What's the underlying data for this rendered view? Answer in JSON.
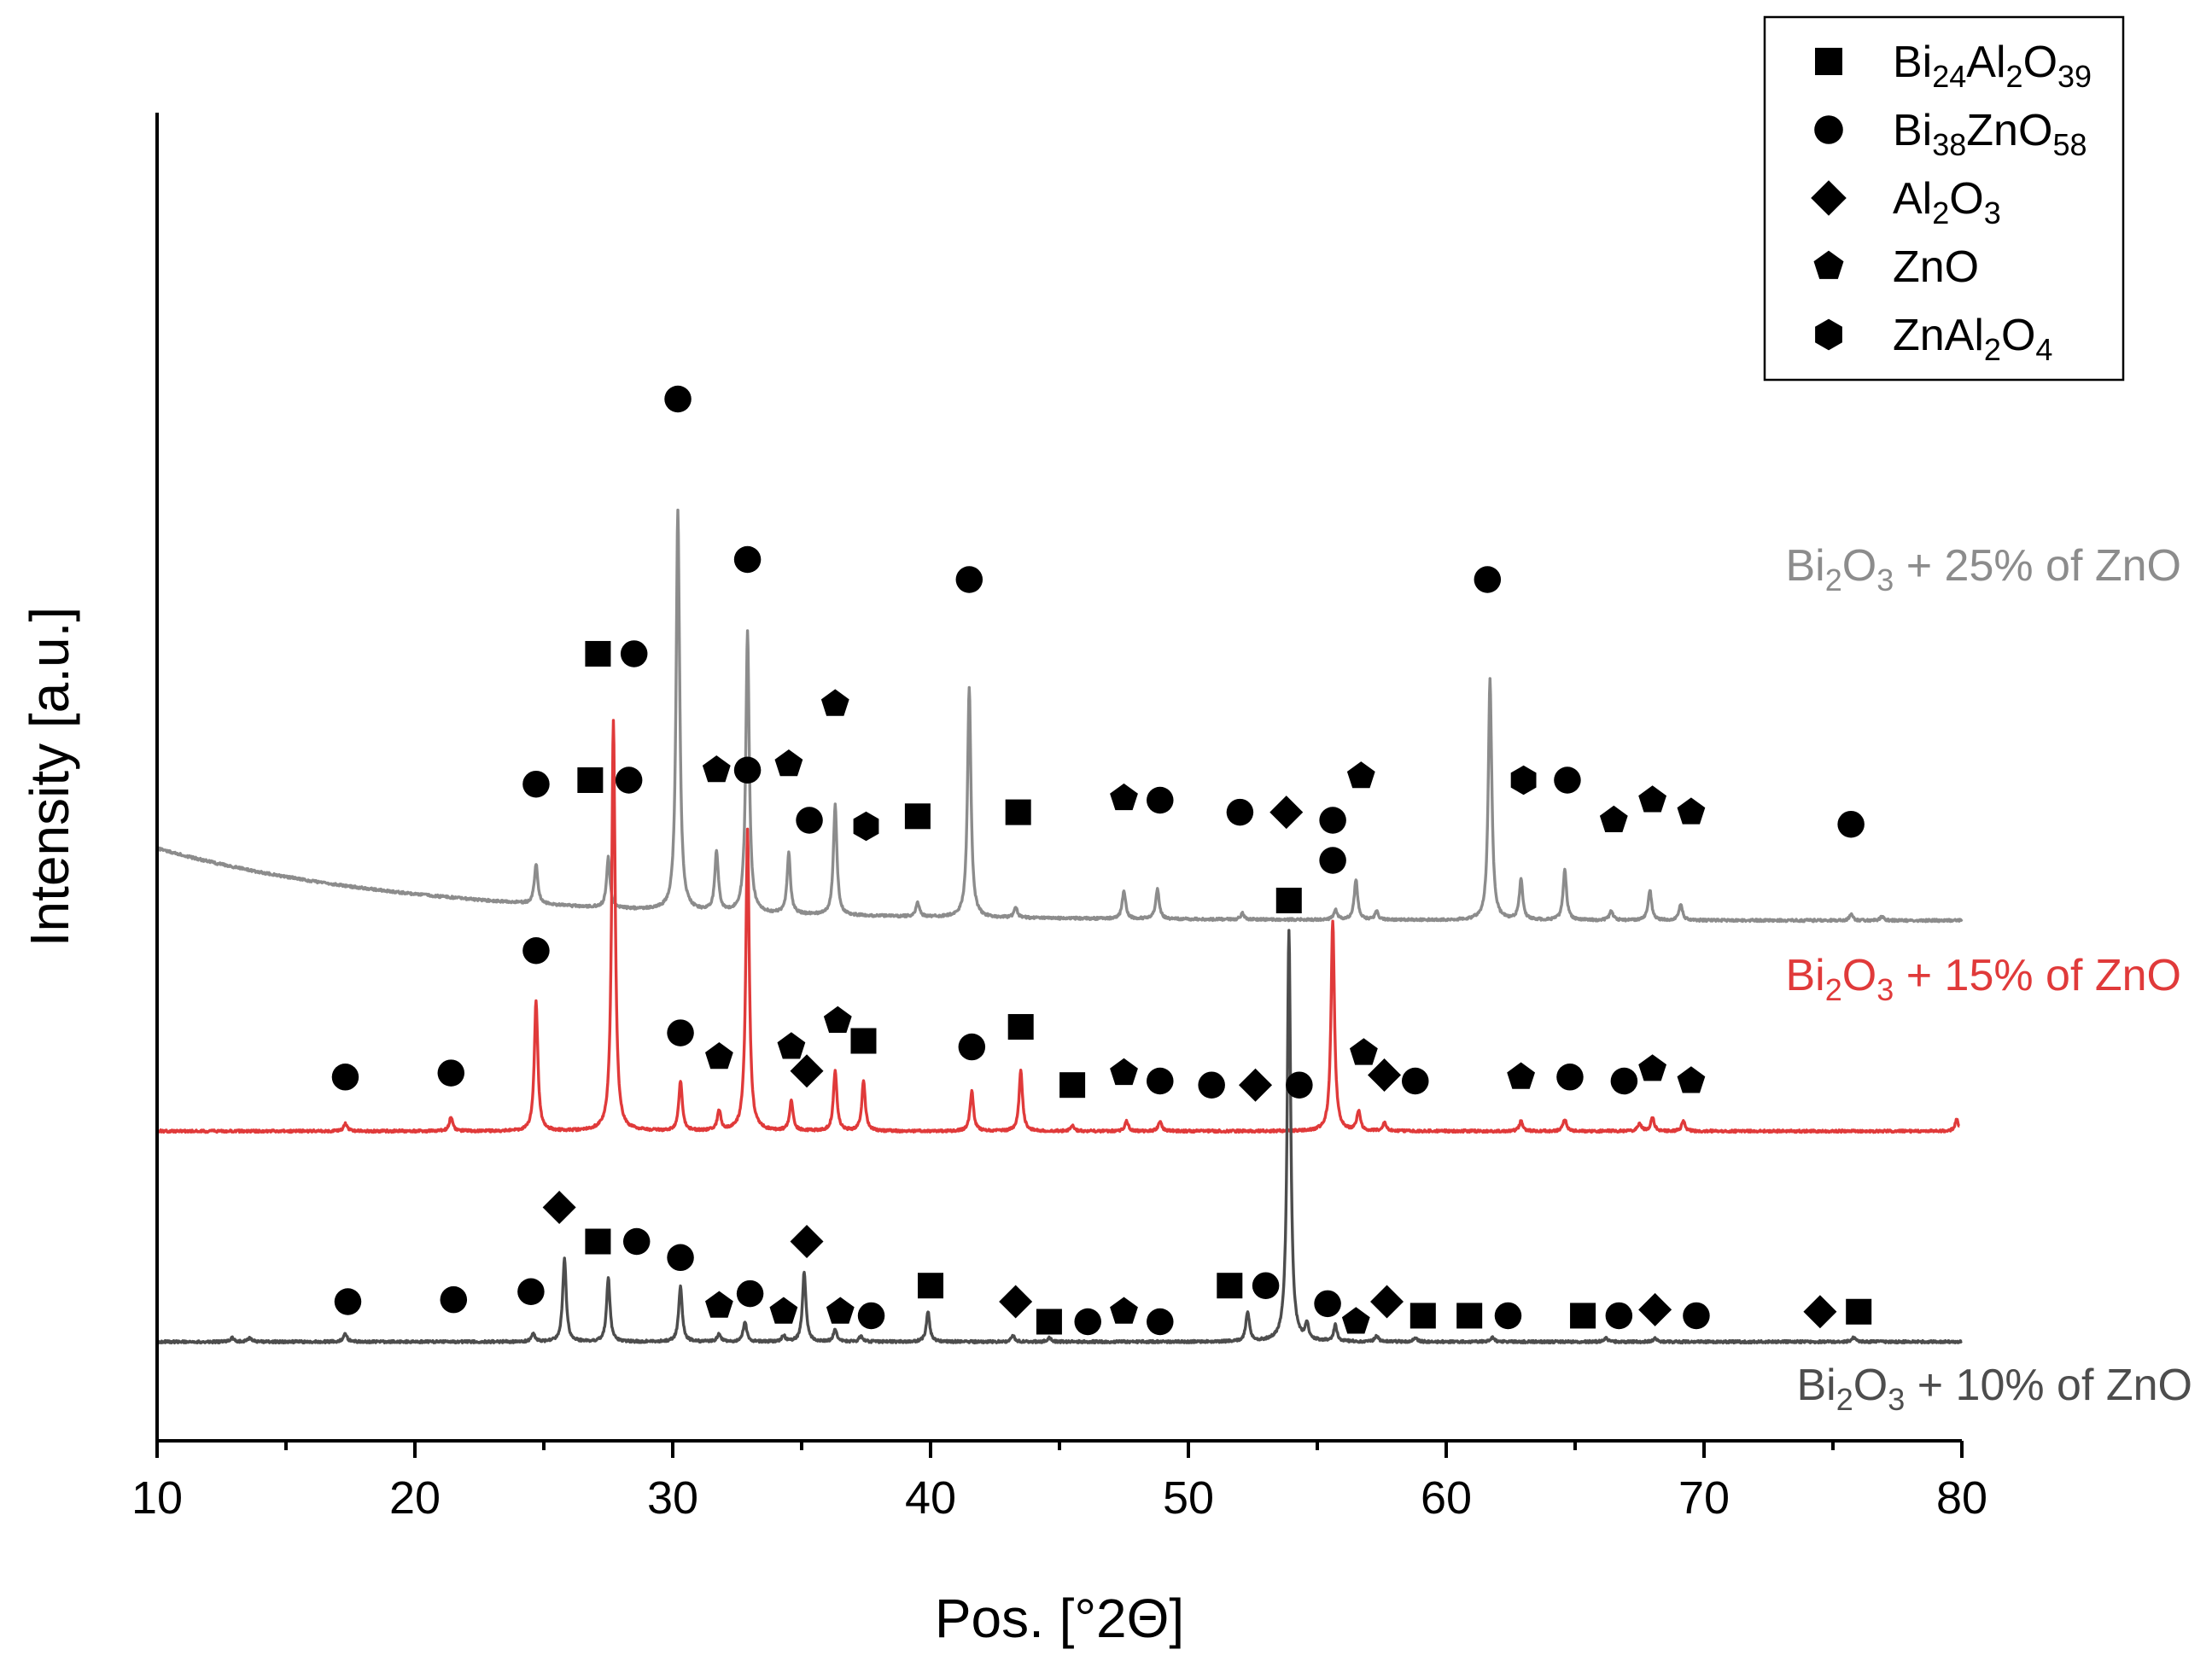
{
  "chart_data": {
    "type": "line",
    "title": "",
    "xlabel": "Pos. [°2Θ]",
    "ylabel": "Intensity [a.u.]",
    "xlim": [
      10,
      80
    ],
    "xticks": [
      10,
      20,
      30,
      40,
      50,
      60,
      70,
      80
    ],
    "yticks": [],
    "grid": false,
    "legend": {
      "position": "top-right",
      "entries": [
        {
          "symbol": "square",
          "formula": [
            [
              "Bi",
              ""
            ],
            [
              "24",
              "sub"
            ],
            [
              "Al",
              ""
            ],
            [
              "2",
              "sub"
            ],
            [
              "O",
              ""
            ],
            [
              "39",
              "sub"
            ]
          ]
        },
        {
          "symbol": "circle",
          "formula": [
            [
              "Bi",
              ""
            ],
            [
              "38",
              "sub"
            ],
            [
              "ZnO",
              ""
            ],
            [
              "58",
              "sub"
            ]
          ]
        },
        {
          "symbol": "diamond",
          "formula": [
            [
              "Al",
              ""
            ],
            [
              "2",
              "sub"
            ],
            [
              "O",
              ""
            ],
            [
              "3",
              "sub"
            ]
          ]
        },
        {
          "symbol": "pentagon",
          "formula": [
            [
              "ZnO",
              ""
            ]
          ]
        },
        {
          "symbol": "hexagon",
          "formula": [
            [
              "ZnAl",
              ""
            ],
            [
              "2",
              "sub"
            ],
            [
              "O",
              ""
            ],
            [
              "4",
              "sub"
            ]
          ]
        }
      ]
    },
    "series": [
      {
        "name": "Bi2O3 + 25% of ZnO",
        "label_parts": [
          [
            "Bi",
            ""
          ],
          [
            "2",
            "sub"
          ],
          [
            "O",
            ""
          ],
          [
            "3",
            "sub"
          ],
          [
            " + 25% of ZnO",
            ""
          ]
        ],
        "color": "#8c8c8c",
        "baseline": 0.36,
        "offset": 2.1,
        "peaks": [
          [
            24.7,
            0.2
          ],
          [
            27.5,
            0.25
          ],
          [
            30.2,
            2.0
          ],
          [
            31.7,
            0.3
          ],
          [
            32.9,
            1.4
          ],
          [
            34.5,
            0.3
          ],
          [
            36.3,
            0.55
          ],
          [
            39.5,
            0.07
          ],
          [
            41.5,
            1.15
          ],
          [
            43.3,
            0.05
          ],
          [
            47.5,
            0.14
          ],
          [
            48.8,
            0.15
          ],
          [
            52.1,
            0.03
          ],
          [
            55.7,
            0.05
          ],
          [
            56.5,
            0.2
          ],
          [
            57.3,
            0.04
          ],
          [
            61.7,
            1.2
          ],
          [
            62.9,
            0.2
          ],
          [
            64.6,
            0.25
          ],
          [
            66.4,
            0.05
          ],
          [
            67.9,
            0.15
          ],
          [
            69.1,
            0.08
          ],
          [
            75.7,
            0.03
          ],
          [
            76.9,
            0.02
          ]
        ],
        "markers": [
          {
            "x": 24.7,
            "y": 2.78,
            "s": "circle"
          },
          {
            "x": 26.8,
            "y": 2.8,
            "s": "square"
          },
          {
            "x": 28.3,
            "y": 2.8,
            "s": "circle"
          },
          {
            "x": 30.2,
            "y": 4.7,
            "s": "circle"
          },
          {
            "x": 31.7,
            "y": 2.85,
            "s": "pentagon"
          },
          {
            "x": 32.9,
            "y": 3.9,
            "s": "circle"
          },
          {
            "x": 34.5,
            "y": 2.88,
            "s": "pentagon"
          },
          {
            "x": 35.3,
            "y": 2.6,
            "s": "circle"
          },
          {
            "x": 36.3,
            "y": 3.18,
            "s": "pentagon"
          },
          {
            "x": 37.5,
            "y": 2.57,
            "s": "hexagon"
          },
          {
            "x": 39.5,
            "y": 2.62,
            "s": "square"
          },
          {
            "x": 41.5,
            "y": 3.8,
            "s": "circle"
          },
          {
            "x": 43.4,
            "y": 2.64,
            "s": "square"
          },
          {
            "x": 47.5,
            "y": 2.71,
            "s": "pentagon"
          },
          {
            "x": 48.9,
            "y": 2.7,
            "s": "circle"
          },
          {
            "x": 52.0,
            "y": 2.64,
            "s": "circle"
          },
          {
            "x": 53.8,
            "y": 2.64,
            "s": "diamond"
          },
          {
            "x": 55.6,
            "y": 2.6,
            "s": "circle"
          },
          {
            "x": 56.7,
            "y": 2.82,
            "s": "pentagon"
          },
          {
            "x": 61.6,
            "y": 3.8,
            "s": "circle"
          },
          {
            "x": 63.0,
            "y": 2.8,
            "s": "hexagon"
          },
          {
            "x": 64.7,
            "y": 2.8,
            "s": "circle"
          },
          {
            "x": 66.5,
            "y": 2.6,
            "s": "pentagon"
          },
          {
            "x": 68.0,
            "y": 2.7,
            "s": "pentagon"
          },
          {
            "x": 69.5,
            "y": 2.64,
            "s": "pentagon"
          },
          {
            "x": 75.7,
            "y": 2.58,
            "s": "circle"
          }
        ]
      },
      {
        "name": "Bi2O3 + 15% of ZnO",
        "label_parts": [
          [
            "Bi",
            ""
          ],
          [
            "2",
            "sub"
          ],
          [
            "O",
            ""
          ],
          [
            "3",
            "sub"
          ],
          [
            " + 15% of ZnO",
            ""
          ]
        ],
        "color": "#e03a3a",
        "baseline": 0,
        "offset": 1.05,
        "peaks": [
          [
            17.3,
            0.04
          ],
          [
            21.4,
            0.07
          ],
          [
            24.7,
            0.65
          ],
          [
            27.7,
            2.05
          ],
          [
            30.3,
            0.25
          ],
          [
            31.8,
            0.1
          ],
          [
            32.9,
            1.5
          ],
          [
            34.6,
            0.15
          ],
          [
            36.3,
            0.3
          ],
          [
            37.4,
            0.25
          ],
          [
            41.6,
            0.2
          ],
          [
            43.5,
            0.3
          ],
          [
            45.5,
            0.03
          ],
          [
            47.6,
            0.05
          ],
          [
            48.9,
            0.05
          ],
          [
            55.6,
            1.05
          ],
          [
            56.6,
            0.1
          ],
          [
            57.6,
            0.04
          ],
          [
            62.9,
            0.05
          ],
          [
            64.6,
            0.06
          ],
          [
            67.5,
            0.04
          ],
          [
            68.0,
            0.07
          ],
          [
            69.2,
            0.05
          ],
          [
            79.8,
            0.06
          ]
        ],
        "markers": [
          {
            "x": 17.3,
            "y": 1.32,
            "s": "circle"
          },
          {
            "x": 21.4,
            "y": 1.34,
            "s": "circle"
          },
          {
            "x": 24.7,
            "y": 1.95,
            "s": "circle"
          },
          {
            "x": 27.1,
            "y": 3.43,
            "s": "square"
          },
          {
            "x": 28.5,
            "y": 3.43,
            "s": "circle"
          },
          {
            "x": 30.3,
            "y": 1.54,
            "s": "circle"
          },
          {
            "x": 31.8,
            "y": 1.42,
            "s": "pentagon"
          },
          {
            "x": 32.9,
            "y": 2.85,
            "s": "circle"
          },
          {
            "x": 34.6,
            "y": 1.47,
            "s": "pentagon"
          },
          {
            "x": 35.2,
            "y": 1.35,
            "s": "diamond"
          },
          {
            "x": 36.4,
            "y": 1.6,
            "s": "pentagon"
          },
          {
            "x": 37.4,
            "y": 1.5,
            "s": "square"
          },
          {
            "x": 41.6,
            "y": 1.47,
            "s": "circle"
          },
          {
            "x": 43.5,
            "y": 1.57,
            "s": "square"
          },
          {
            "x": 45.5,
            "y": 1.28,
            "s": "square"
          },
          {
            "x": 47.5,
            "y": 1.34,
            "s": "pentagon"
          },
          {
            "x": 48.9,
            "y": 1.3,
            "s": "circle"
          },
          {
            "x": 50.9,
            "y": 1.28,
            "s": "circle"
          },
          {
            "x": 52.6,
            "y": 1.28,
            "s": "diamond"
          },
          {
            "x": 54.3,
            "y": 1.28,
            "s": "circle"
          },
          {
            "x": 55.6,
            "y": 2.4,
            "s": "circle"
          },
          {
            "x": 56.8,
            "y": 1.44,
            "s": "pentagon"
          },
          {
            "x": 57.6,
            "y": 1.33,
            "s": "diamond"
          },
          {
            "x": 58.8,
            "y": 1.3,
            "s": "circle"
          },
          {
            "x": 62.9,
            "y": 1.32,
            "s": "pentagon"
          },
          {
            "x": 64.8,
            "y": 1.32,
            "s": "circle"
          },
          {
            "x": 66.9,
            "y": 1.3,
            "s": "circle"
          },
          {
            "x": 68.0,
            "y": 1.36,
            "s": "pentagon"
          },
          {
            "x": 69.5,
            "y": 1.3,
            "s": "pentagon"
          }
        ]
      },
      {
        "name": "Bi2O3 + 10% of ZnO",
        "label_parts": [
          [
            "Bi",
            ""
          ],
          [
            "2",
            "sub"
          ],
          [
            "O",
            ""
          ],
          [
            "3",
            "sub"
          ],
          [
            " + 10% of ZnO",
            ""
          ]
        ],
        "color": "#4d4d4d",
        "baseline": 0,
        "offset": 0,
        "peaks": [
          [
            12.9,
            0.02
          ],
          [
            13.6,
            0.02
          ],
          [
            17.3,
            0.04
          ],
          [
            24.6,
            0.04
          ],
          [
            25.8,
            0.42
          ],
          [
            27.5,
            0.32
          ],
          [
            30.3,
            0.28
          ],
          [
            31.8,
            0.04
          ],
          [
            32.8,
            0.1
          ],
          [
            34.3,
            0.03
          ],
          [
            35.1,
            0.35
          ],
          [
            36.3,
            0.06
          ],
          [
            37.3,
            0.03
          ],
          [
            39.9,
            0.15
          ],
          [
            43.2,
            0.03
          ],
          [
            44.6,
            0.02
          ],
          [
            52.3,
            0.15
          ],
          [
            53.9,
            2.05
          ],
          [
            54.6,
            0.08
          ],
          [
            55.7,
            0.08
          ],
          [
            57.3,
            0.03
          ],
          [
            58.8,
            0.02
          ],
          [
            61.8,
            0.02
          ],
          [
            66.2,
            0.02
          ],
          [
            68.1,
            0.02
          ],
          [
            75.8,
            0.02
          ]
        ],
        "markers": [
          {
            "x": 17.4,
            "y": 0.2,
            "s": "circle"
          },
          {
            "x": 21.5,
            "y": 0.21,
            "s": "circle"
          },
          {
            "x": 24.5,
            "y": 0.25,
            "s": "circle"
          },
          {
            "x": 25.6,
            "y": 0.67,
            "s": "diamond"
          },
          {
            "x": 27.1,
            "y": 0.5,
            "s": "square"
          },
          {
            "x": 28.6,
            "y": 0.5,
            "s": "circle"
          },
          {
            "x": 30.3,
            "y": 0.42,
            "s": "circle"
          },
          {
            "x": 31.8,
            "y": 0.18,
            "s": "pentagon"
          },
          {
            "x": 33.0,
            "y": 0.24,
            "s": "circle"
          },
          {
            "x": 34.3,
            "y": 0.15,
            "s": "pentagon"
          },
          {
            "x": 35.2,
            "y": 0.5,
            "s": "diamond"
          },
          {
            "x": 36.5,
            "y": 0.15,
            "s": "pentagon"
          },
          {
            "x": 37.7,
            "y": 0.13,
            "s": "circle"
          },
          {
            "x": 40.0,
            "y": 0.28,
            "s": "square"
          },
          {
            "x": 43.3,
            "y": 0.2,
            "s": "diamond"
          },
          {
            "x": 44.6,
            "y": 0.1,
            "s": "square"
          },
          {
            "x": 46.1,
            "y": 0.1,
            "s": "circle"
          },
          {
            "x": 47.5,
            "y": 0.15,
            "s": "pentagon"
          },
          {
            "x": 48.9,
            "y": 0.1,
            "s": "circle"
          },
          {
            "x": 51.6,
            "y": 0.28,
            "s": "square"
          },
          {
            "x": 53.0,
            "y": 0.28,
            "s": "circle"
          },
          {
            "x": 53.9,
            "y": 2.2,
            "s": "square"
          },
          {
            "x": 55.4,
            "y": 0.19,
            "s": "circle"
          },
          {
            "x": 56.5,
            "y": 0.1,
            "s": "pentagon"
          },
          {
            "x": 57.7,
            "y": 0.2,
            "s": "diamond"
          },
          {
            "x": 59.1,
            "y": 0.13,
            "s": "square"
          },
          {
            "x": 60.9,
            "y": 0.13,
            "s": "square"
          },
          {
            "x": 62.4,
            "y": 0.13,
            "s": "circle"
          },
          {
            "x": 65.3,
            "y": 0.13,
            "s": "square"
          },
          {
            "x": 66.7,
            "y": 0.13,
            "s": "circle"
          },
          {
            "x": 68.1,
            "y": 0.16,
            "s": "diamond"
          },
          {
            "x": 69.7,
            "y": 0.13,
            "s": "circle"
          },
          {
            "x": 74.5,
            "y": 0.15,
            "s": "diamond"
          },
          {
            "x": 76.0,
            "y": 0.15,
            "s": "square"
          }
        ]
      }
    ]
  }
}
